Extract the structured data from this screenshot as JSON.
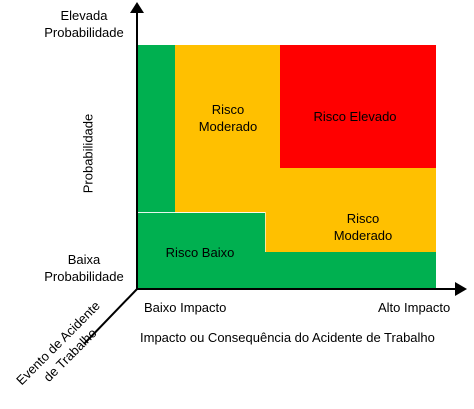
{
  "colors": {
    "low": "#00b050",
    "moderate": "#ffc000",
    "high": "#ff0000",
    "axis": "#000000"
  },
  "y_axis": {
    "top_label_line1": "Elevada",
    "top_label_line2": "Probabilidade",
    "bottom_label_line1": "Baixa",
    "bottom_label_line2": "Probabilidade",
    "title": "Probabilidade"
  },
  "x_axis": {
    "left_label": "Baixo Impacto",
    "right_label": "Alto Impacto",
    "title": "Impacto ou Consequência do Acidente de Trabalho"
  },
  "diagonal_axis": {
    "label_line1": "Evento de Acidente",
    "label_line2": "de Trabalho"
  },
  "zones": {
    "moderate_upper_line1": "Risco",
    "moderate_upper_line2": "Moderado",
    "high": "Risco Elevado",
    "moderate_lower_line1": "Risco",
    "moderate_lower_line2": "Moderado",
    "low": "Risco Baixo"
  }
}
